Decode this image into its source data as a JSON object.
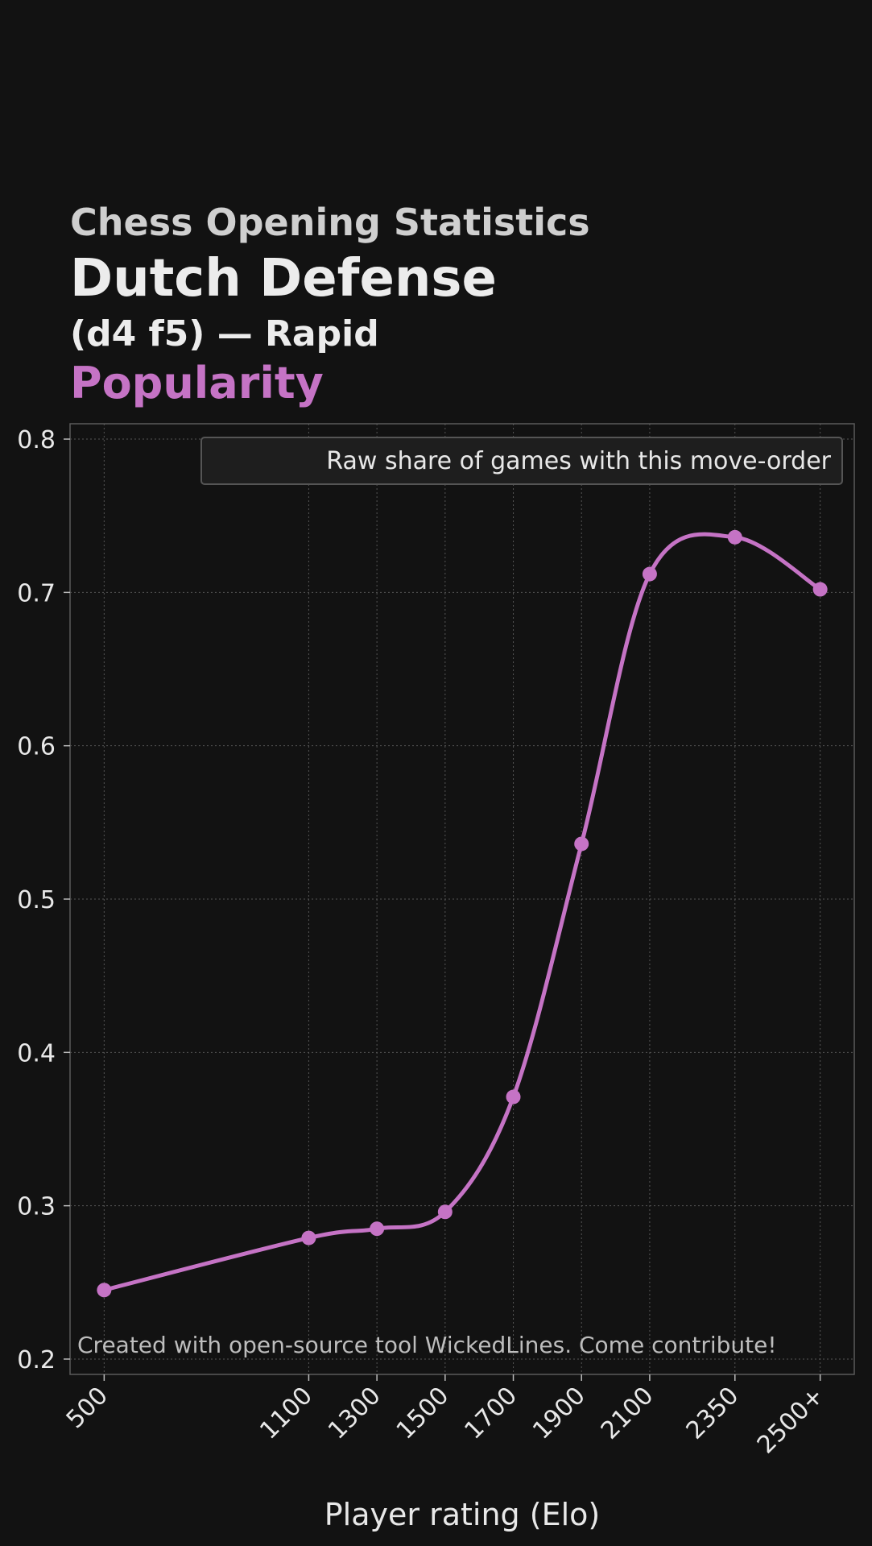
{
  "header": {
    "supertitle": "Chess Opening Statistics",
    "title": "Dutch Defense",
    "subtitle": "(d4 f5) — Rapid",
    "metric": "Popularity"
  },
  "colors": {
    "background": "#121212",
    "series": "#c573c5",
    "grid": "#555555",
    "text": "#e8e8e8"
  },
  "chart_data": {
    "type": "line",
    "xlabel": "Player rating (Elo)",
    "ylabel": "",
    "x": [
      500,
      1100,
      1300,
      1500,
      1700,
      1900,
      2100,
      2350,
      2600
    ],
    "x_tick_labels": [
      "500",
      "1100",
      "1300",
      "1500",
      "1700",
      "1900",
      "2100",
      "2350",
      "2500+"
    ],
    "xlim": [
      400,
      2700
    ],
    "ylim": [
      0.19,
      0.81
    ],
    "y_ticks": [
      0.2,
      0.3,
      0.4,
      0.5,
      0.6,
      0.7,
      0.8
    ],
    "y_tick_labels": [
      "0.2",
      "0.3",
      "0.4",
      "0.5",
      "0.6",
      "0.7",
      "0.8"
    ],
    "grid": true,
    "legend_position": "top-right",
    "series": [
      {
        "name": "Raw share of games with this move-order",
        "values": [
          0.245,
          0.279,
          0.285,
          0.296,
          0.371,
          0.536,
          0.712,
          0.736,
          0.702
        ]
      }
    ],
    "annotation": "Created with open-source tool WickedLines. Come contribute!"
  }
}
